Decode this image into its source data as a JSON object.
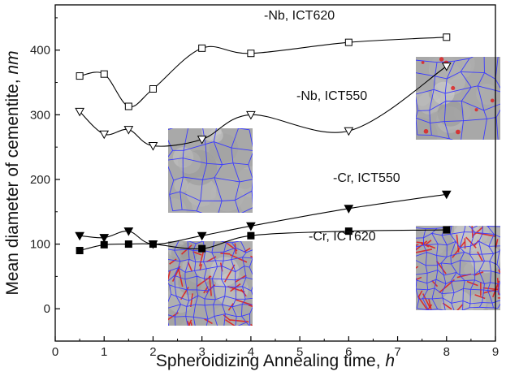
{
  "chart_data": {
    "type": "scatter",
    "xlabel_main": "Spheroidizing Annealing time, ",
    "xlabel_unit": "h",
    "ylabel_main": "Mean diameter of cementite, ",
    "ylabel_unit": "nm",
    "xlim": [
      0,
      9
    ],
    "ylim": [
      -50,
      470
    ],
    "xticks": [
      "0",
      "1",
      "2",
      "3",
      "4",
      "5",
      "6",
      "7",
      "8",
      "9"
    ],
    "yticks": [
      "0",
      "100",
      "200",
      "300",
      "400"
    ],
    "series": [
      {
        "name": "-Nb, ICT620",
        "marker": "square-open",
        "x": [
          0.5,
          1,
          1.5,
          2,
          3,
          4,
          6,
          8
        ],
        "y": [
          360,
          363,
          313,
          340,
          403,
          395,
          412,
          420
        ]
      },
      {
        "name": "-Nb, ICT550",
        "marker": "triangle-down-open",
        "x": [
          0.5,
          1,
          1.5,
          2,
          3,
          4,
          6,
          8
        ],
        "y": [
          305,
          270,
          277,
          252,
          262,
          300,
          275,
          375
        ]
      },
      {
        "name": "-Cr, ICT550",
        "marker": "triangle-down-filled",
        "x": [
          0.5,
          1,
          1.5,
          2,
          3,
          4,
          6,
          8
        ],
        "y": [
          113,
          110,
          120,
          100,
          113,
          128,
          155,
          177
        ]
      },
      {
        "name": "-Cr, ICT620",
        "marker": "square-filled",
        "x": [
          0.5,
          1,
          1.5,
          2,
          3,
          4,
          6,
          8
        ],
        "y": [
          90,
          99,
          100,
          100,
          93,
          113,
          120,
          122
        ]
      }
    ],
    "insets": [
      {
        "name": "micrograph-top-right",
        "palette": "blue-grain-boundaries-with-red"
      },
      {
        "name": "micrograph-middle",
        "palette": "blue-grain-boundaries"
      },
      {
        "name": "micrograph-bottom-left",
        "palette": "red-blue-dense-boundaries"
      },
      {
        "name": "micrograph-bottom-right",
        "palette": "red-blue-dense-boundaries"
      }
    ],
    "colors": {
      "axis": "#000000",
      "series": "#000000",
      "boundary_blue": "#3a3aff",
      "boundary_red": "#e01a1a",
      "matrix_gray": "#a8a8a8"
    }
  }
}
